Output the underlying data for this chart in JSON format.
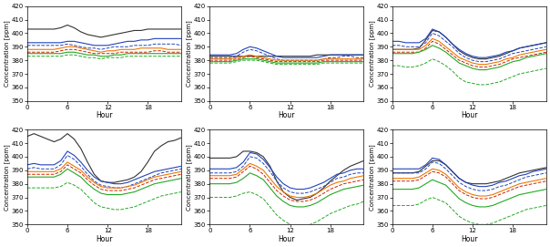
{
  "hours": [
    0,
    1,
    2,
    3,
    4,
    5,
    6,
    7,
    8,
    9,
    10,
    11,
    12,
    13,
    14,
    15,
    16,
    17,
    18,
    19,
    20,
    21,
    22,
    23
  ],
  "panels": [
    {
      "lines": {
        "black_solid": [
          403,
          403,
          403,
          403,
          403,
          404,
          406,
          404,
          401,
          399,
          398,
          397,
          398,
          399,
          400,
          401,
          402,
          402,
          403,
          403,
          403,
          403,
          403,
          403
        ],
        "blue_solid": [
          393,
          393,
          393,
          393,
          393,
          393,
          394,
          394,
          393,
          392,
          391,
          391,
          391,
          392,
          393,
          394,
          394,
          395,
          395,
          396,
          396,
          396,
          396,
          396
        ],
        "blue_dashed": [
          391,
          391,
          391,
          391,
          391,
          391,
          392,
          391,
          390,
          389,
          389,
          388,
          389,
          390,
          390,
          390,
          391,
          391,
          391,
          392,
          392,
          392,
          392,
          391
        ],
        "orange_solid": [
          388,
          388,
          388,
          388,
          388,
          389,
          390,
          390,
          389,
          388,
          387,
          386,
          387,
          387,
          388,
          388,
          388,
          389,
          389,
          389,
          389,
          388,
          388,
          388
        ],
        "red_dashed": [
          386,
          386,
          386,
          386,
          386,
          387,
          388,
          388,
          387,
          386,
          385,
          385,
          385,
          385,
          386,
          386,
          386,
          386,
          386,
          387,
          387,
          386,
          386,
          386
        ],
        "green_solid": [
          385,
          385,
          385,
          385,
          385,
          385,
          386,
          386,
          385,
          384,
          384,
          383,
          383,
          384,
          384,
          385,
          385,
          385,
          385,
          385,
          385,
          385,
          385,
          385
        ],
        "green_dashed": [
          383,
          383,
          383,
          383,
          383,
          383,
          384,
          384,
          383,
          382,
          382,
          381,
          382,
          382,
          382,
          383,
          383,
          383,
          383,
          383,
          383,
          383,
          383,
          383
        ]
      }
    },
    {
      "lines": {
        "black_solid": [
          383,
          383,
          383,
          383,
          383,
          383,
          383,
          383,
          383,
          383,
          383,
          383,
          383,
          383,
          383,
          383,
          384,
          384,
          384,
          384,
          384,
          384,
          384,
          384
        ],
        "blue_solid": [
          384,
          384,
          384,
          384,
          385,
          388,
          390,
          389,
          387,
          385,
          383,
          382,
          382,
          382,
          382,
          382,
          382,
          383,
          384,
          384,
          384,
          384,
          384,
          384
        ],
        "blue_dashed": [
          382,
          382,
          382,
          382,
          383,
          386,
          388,
          387,
          385,
          383,
          381,
          380,
          380,
          380,
          380,
          380,
          380,
          381,
          382,
          382,
          383,
          383,
          382,
          382
        ],
        "orange_solid": [
          381,
          381,
          381,
          381,
          382,
          383,
          384,
          383,
          382,
          381,
          380,
          380,
          380,
          380,
          380,
          380,
          380,
          381,
          381,
          381,
          381,
          381,
          381,
          381
        ],
        "red_dashed": [
          380,
          380,
          380,
          380,
          381,
          382,
          383,
          382,
          381,
          380,
          379,
          379,
          379,
          379,
          379,
          379,
          379,
          380,
          380,
          380,
          380,
          380,
          380,
          380
        ],
        "green_solid": [
          379,
          379,
          379,
          379,
          380,
          381,
          381,
          381,
          380,
          379,
          378,
          378,
          378,
          378,
          378,
          378,
          378,
          379,
          379,
          379,
          379,
          379,
          379,
          379
        ],
        "green_dashed": [
          378,
          378,
          378,
          378,
          379,
          380,
          380,
          380,
          379,
          378,
          377,
          377,
          377,
          377,
          377,
          377,
          377,
          378,
          378,
          378,
          378,
          378,
          378,
          378
        ]
      }
    },
    {
      "lines": {
        "black_solid": [
          388,
          388,
          388,
          388,
          389,
          395,
          402,
          401,
          397,
          392,
          387,
          384,
          382,
          381,
          381,
          382,
          383,
          385,
          387,
          389,
          390,
          391,
          392,
          393
        ],
        "blue_solid": [
          394,
          394,
          393,
          393,
          393,
          396,
          403,
          401,
          397,
          392,
          388,
          385,
          383,
          382,
          382,
          383,
          384,
          386,
          387,
          389,
          390,
          391,
          392,
          393
        ],
        "blue_dashed": [
          391,
          391,
          390,
          390,
          390,
          393,
          400,
          398,
          394,
          390,
          385,
          382,
          380,
          379,
          379,
          380,
          381,
          383,
          385,
          386,
          387,
          388,
          389,
          390
        ],
        "orange_solid": [
          388,
          388,
          388,
          388,
          388,
          391,
          396,
          394,
          390,
          386,
          382,
          380,
          378,
          377,
          377,
          378,
          379,
          381,
          382,
          384,
          385,
          386,
          387,
          388
        ],
        "red_dashed": [
          386,
          386,
          386,
          386,
          386,
          389,
          394,
          392,
          388,
          384,
          380,
          378,
          376,
          375,
          375,
          376,
          377,
          379,
          381,
          382,
          383,
          384,
          385,
          386
        ],
        "green_solid": [
          385,
          385,
          385,
          385,
          386,
          388,
          391,
          389,
          386,
          382,
          378,
          376,
          374,
          373,
          373,
          374,
          375,
          377,
          379,
          380,
          382,
          383,
          384,
          385
        ],
        "green_dashed": [
          376,
          376,
          375,
          375,
          376,
          378,
          381,
          379,
          376,
          372,
          367,
          364,
          363,
          362,
          362,
          363,
          364,
          366,
          368,
          370,
          371,
          372,
          373,
          374
        ]
      }
    },
    {
      "lines": {
        "black_solid": [
          415,
          417,
          415,
          413,
          411,
          413,
          417,
          413,
          406,
          396,
          387,
          382,
          381,
          381,
          382,
          383,
          385,
          389,
          396,
          404,
          408,
          411,
          412,
          414
        ],
        "blue_solid": [
          394,
          395,
          394,
          394,
          394,
          397,
          404,
          401,
          396,
          390,
          385,
          382,
          381,
          380,
          380,
          381,
          383,
          385,
          387,
          389,
          390,
          391,
          392,
          393
        ],
        "blue_dashed": [
          391,
          392,
          391,
          391,
          391,
          394,
          401,
          398,
          393,
          387,
          382,
          379,
          378,
          377,
          377,
          378,
          380,
          382,
          384,
          386,
          388,
          389,
          390,
          391
        ],
        "orange_solid": [
          389,
          389,
          389,
          389,
          389,
          391,
          396,
          393,
          390,
          385,
          381,
          378,
          377,
          377,
          377,
          378,
          379,
          381,
          383,
          385,
          386,
          387,
          388,
          389
        ],
        "red_dashed": [
          387,
          387,
          387,
          387,
          387,
          389,
          394,
          391,
          388,
          383,
          379,
          376,
          375,
          375,
          375,
          376,
          377,
          379,
          381,
          383,
          384,
          385,
          386,
          387
        ],
        "green_solid": [
          385,
          385,
          385,
          385,
          385,
          387,
          391,
          388,
          385,
          380,
          376,
          373,
          372,
          372,
          372,
          373,
          374,
          376,
          378,
          380,
          381,
          382,
          383,
          384
        ],
        "green_dashed": [
          377,
          377,
          377,
          377,
          377,
          378,
          381,
          379,
          376,
          371,
          366,
          363,
          362,
          361,
          361,
          362,
          363,
          365,
          367,
          369,
          371,
          372,
          373,
          374
        ]
      }
    },
    {
      "lines": {
        "black_solid": [
          399,
          399,
          399,
          399,
          400,
          404,
          404,
          403,
          400,
          393,
          382,
          374,
          370,
          368,
          369,
          370,
          373,
          377,
          382,
          386,
          390,
          393,
          395,
          397
        ],
        "blue_solid": [
          391,
          391,
          391,
          391,
          392,
          396,
          403,
          402,
          398,
          392,
          385,
          380,
          377,
          376,
          376,
          377,
          379,
          381,
          384,
          387,
          388,
          390,
          391,
          391
        ],
        "blue_dashed": [
          388,
          388,
          388,
          388,
          389,
          393,
          400,
          399,
          395,
          389,
          382,
          377,
          374,
          373,
          373,
          374,
          376,
          378,
          381,
          384,
          385,
          387,
          388,
          388
        ],
        "orange_solid": [
          386,
          386,
          386,
          386,
          387,
          391,
          395,
          393,
          390,
          384,
          378,
          374,
          371,
          370,
          370,
          371,
          373,
          376,
          379,
          381,
          382,
          384,
          385,
          386
        ],
        "red_dashed": [
          384,
          384,
          384,
          384,
          385,
          389,
          393,
          391,
          387,
          381,
          375,
          371,
          368,
          367,
          367,
          368,
          370,
          373,
          376,
          378,
          380,
          381,
          382,
          383
        ],
        "green_solid": [
          380,
          380,
          380,
          380,
          381,
          384,
          388,
          386,
          383,
          377,
          371,
          367,
          364,
          363,
          363,
          364,
          366,
          369,
          372,
          374,
          376,
          377,
          378,
          379
        ],
        "green_dashed": [
          370,
          370,
          370,
          370,
          371,
          373,
          374,
          372,
          369,
          363,
          357,
          353,
          350,
          349,
          349,
          350,
          352,
          355,
          358,
          360,
          362,
          364,
          365,
          367
        ]
      }
    },
    {
      "lines": {
        "black_solid": [
          388,
          388,
          388,
          388,
          389,
          393,
          397,
          397,
          394,
          389,
          384,
          381,
          380,
          380,
          380,
          381,
          382,
          384,
          386,
          388,
          389,
          390,
          391,
          392
        ],
        "blue_solid": [
          391,
          391,
          391,
          391,
          391,
          394,
          399,
          398,
          394,
          389,
          384,
          381,
          379,
          378,
          378,
          379,
          381,
          382,
          384,
          386,
          387,
          389,
          390,
          391
        ],
        "blue_dashed": [
          388,
          388,
          388,
          388,
          388,
          391,
          396,
          395,
          391,
          386,
          381,
          378,
          376,
          375,
          375,
          376,
          378,
          379,
          381,
          383,
          385,
          386,
          387,
          388
        ],
        "orange_solid": [
          384,
          384,
          384,
          384,
          385,
          388,
          391,
          390,
          387,
          382,
          377,
          374,
          372,
          371,
          371,
          372,
          374,
          376,
          378,
          380,
          381,
          382,
          383,
          384
        ],
        "red_dashed": [
          382,
          382,
          382,
          382,
          383,
          386,
          389,
          388,
          385,
          380,
          375,
          372,
          370,
          369,
          369,
          370,
          372,
          374,
          376,
          378,
          379,
          380,
          381,
          382
        ],
        "green_solid": [
          376,
          376,
          376,
          376,
          377,
          380,
          383,
          381,
          379,
          374,
          369,
          366,
          364,
          363,
          363,
          364,
          366,
          368,
          370,
          372,
          373,
          374,
          375,
          376
        ],
        "green_dashed": [
          364,
          364,
          364,
          364,
          365,
          368,
          370,
          368,
          366,
          361,
          356,
          353,
          351,
          350,
          350,
          351,
          353,
          355,
          357,
          359,
          361,
          362,
          363,
          364
        ]
      }
    }
  ],
  "ylim": [
    350,
    420
  ],
  "yticks": [
    350,
    360,
    370,
    380,
    390,
    400,
    410,
    420
  ],
  "xticks": [
    0,
    6,
    12,
    18
  ],
  "xlabel": "Hour",
  "ylabel": "Concentration [ppm]",
  "colors": {
    "black_solid": {
      "color": "#333333",
      "ls": "-",
      "lw": 0.8
    },
    "blue_solid": {
      "color": "#2244bb",
      "ls": "-",
      "lw": 0.8
    },
    "blue_dashed": {
      "color": "#2244bb",
      "ls": "--",
      "lw": 0.7
    },
    "orange_solid": {
      "color": "#ee7700",
      "ls": "-",
      "lw": 0.8
    },
    "red_dashed": {
      "color": "#cc2200",
      "ls": "--",
      "lw": 0.7
    },
    "green_solid": {
      "color": "#22aa22",
      "ls": "-",
      "lw": 0.8
    },
    "green_dashed": {
      "color": "#22aa22",
      "ls": "--",
      "lw": 0.7
    }
  }
}
